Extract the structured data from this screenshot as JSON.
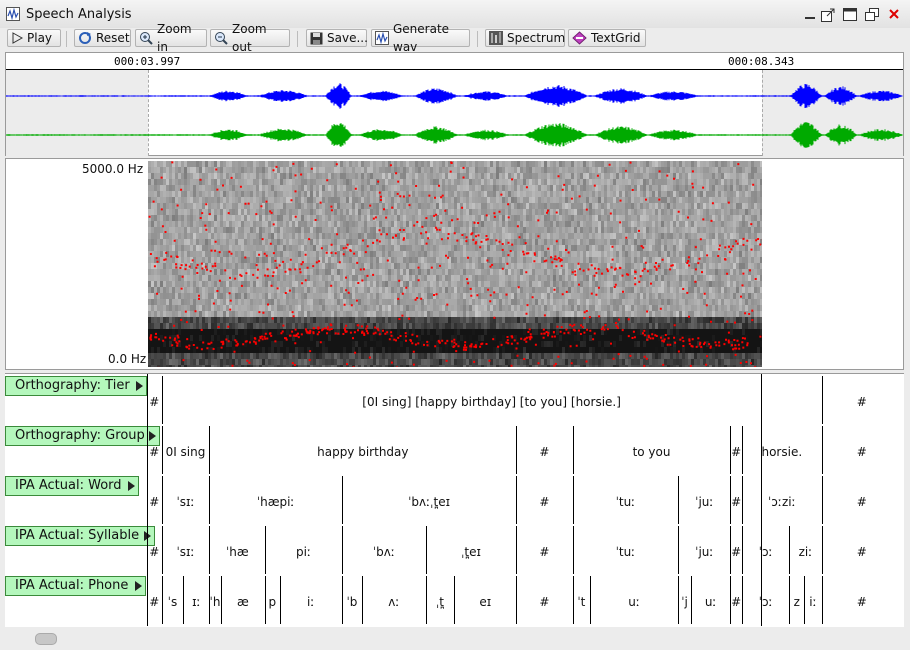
{
  "window": {
    "title": "Speech Analysis"
  },
  "toolbar": {
    "play": "Play",
    "reset": "Reset",
    "zoom_in": "Zoom in",
    "zoom_out": "Zoom out",
    "save": "Save...",
    "generate_wav": "Generate wav",
    "spectrum": "Spectrum",
    "textgrid": "TextGrid"
  },
  "waveform": {
    "selection_start_time": "000:03.997",
    "selection_end_time": "000:08.343",
    "channel_colors": [
      "#0000ff",
      "#00aa00"
    ]
  },
  "spectrogram": {
    "max_label": "5000.0 Hz",
    "min_label": "0.0 Hz",
    "formant_color": "#ff0000"
  },
  "tiers": [
    {
      "name": "Orthography: Tier",
      "intervals": [
        {
          "text": "#",
          "start": 0.0,
          "end": 0.0192
        },
        {
          "text": "[0I sing] [happy birthday] [to you] [horsie.]",
          "start": 0.0192,
          "end": 0.8889
        },
        {
          "text": "#",
          "start": 0.8889,
          "end": 1.0
        }
      ]
    },
    {
      "name": "Orthography: Group",
      "intervals": [
        {
          "text": "#",
          "start": 0.0,
          "end": 0.0192
        },
        {
          "text": "0I sing",
          "start": 0.0192,
          "end": 0.0822
        },
        {
          "text": "happy birthday",
          "start": 0.0822,
          "end": 0.4865
        },
        {
          "text": "#",
          "start": 0.4865,
          "end": 0.5608
        },
        {
          "text": "to you",
          "start": 0.5608,
          "end": 0.7687
        },
        {
          "text": "#",
          "start": 0.7687,
          "end": 0.7839
        },
        {
          "text": "horsie.",
          "start": 0.7839,
          "end": 0.8889
        },
        {
          "text": "#",
          "start": 0.8889,
          "end": 1.0
        }
      ]
    },
    {
      "name": "IPA Actual: Word",
      "intervals": [
        {
          "text": "#",
          "start": 0.0,
          "end": 0.0192
        },
        {
          "text": "ˈsɪː",
          "start": 0.0192,
          "end": 0.0822
        },
        {
          "text": "ˈhæpiː",
          "start": 0.0822,
          "end": 0.2568
        },
        {
          "text": "ˈbʌːˌt̪eɪ",
          "start": 0.2568,
          "end": 0.4865
        },
        {
          "text": "#",
          "start": 0.4865,
          "end": 0.5608
        },
        {
          "text": "ˈtuː",
          "start": 0.5608,
          "end": 0.6998
        },
        {
          "text": "ˈjuː",
          "start": 0.6998,
          "end": 0.7687
        },
        {
          "text": "#",
          "start": 0.7687,
          "end": 0.7839
        },
        {
          "text": "ˈɔːziː",
          "start": 0.7839,
          "end": 0.8889
        },
        {
          "text": "#",
          "start": 0.8889,
          "end": 1.0
        }
      ]
    },
    {
      "name": "IPA Actual: Syllable",
      "intervals": [
        {
          "text": "#",
          "start": 0.0,
          "end": 0.0192
        },
        {
          "text": "ˈsɪː",
          "start": 0.0192,
          "end": 0.0822
        },
        {
          "text": "ˈhæ",
          "start": 0.0822,
          "end": 0.1557
        },
        {
          "text": "piː",
          "start": 0.1557,
          "end": 0.2568
        },
        {
          "text": "ˈbʌː",
          "start": 0.2568,
          "end": 0.3673
        },
        {
          "text": "ˌt̪eɪ",
          "start": 0.3673,
          "end": 0.4865
        },
        {
          "text": "#",
          "start": 0.4865,
          "end": 0.5608
        },
        {
          "text": "ˈtuː",
          "start": 0.5608,
          "end": 0.6998
        },
        {
          "text": "ˈjuː",
          "start": 0.6998,
          "end": 0.7687
        },
        {
          "text": "#",
          "start": 0.7687,
          "end": 0.7839
        },
        {
          "text": "ˈɔː",
          "start": 0.7839,
          "end": 0.8462
        },
        {
          "text": "ziː",
          "start": 0.8462,
          "end": 0.8889
        },
        {
          "text": "#",
          "start": 0.8889,
          "end": 1.0
        }
      ]
    },
    {
      "name": "IPA Actual: Phone",
      "intervals": [
        {
          "text": "#",
          "start": 0.0,
          "end": 0.0192
        },
        {
          "text": "ˈs",
          "start": 0.0192,
          "end": 0.0479
        },
        {
          "text": "ɪː",
          "start": 0.0479,
          "end": 0.0822
        },
        {
          "text": "ˈh",
          "start": 0.0822,
          "end": 0.097
        },
        {
          "text": "æ",
          "start": 0.097,
          "end": 0.1557
        },
        {
          "text": "p",
          "start": 0.1557,
          "end": 0.1746
        },
        {
          "text": "iː",
          "start": 0.1746,
          "end": 0.2568
        },
        {
          "text": "ˈb",
          "start": 0.2568,
          "end": 0.2832
        },
        {
          "text": "ʌː",
          "start": 0.2832,
          "end": 0.3673
        },
        {
          "text": "ˌt̪",
          "start": 0.3673,
          "end": 0.4048
        },
        {
          "text": "eɪ",
          "start": 0.4048,
          "end": 0.4865
        },
        {
          "text": "#",
          "start": 0.4865,
          "end": 0.5608
        },
        {
          "text": "ˈt",
          "start": 0.5608,
          "end": 0.5837
        },
        {
          "text": "uː",
          "start": 0.5837,
          "end": 0.6998
        },
        {
          "text": "ˈj",
          "start": 0.6998,
          "end": 0.7166
        },
        {
          "text": "uː",
          "start": 0.7166,
          "end": 0.7687
        },
        {
          "text": "#",
          "start": 0.7687,
          "end": 0.7839
        },
        {
          "text": "ˈɔː",
          "start": 0.7839,
          "end": 0.8462
        },
        {
          "text": "z",
          "start": 0.8462,
          "end": 0.8659
        },
        {
          "text": "iː",
          "start": 0.8659,
          "end": 0.8889
        },
        {
          "text": "#",
          "start": 0.8889,
          "end": 1.0
        }
      ]
    }
  ]
}
